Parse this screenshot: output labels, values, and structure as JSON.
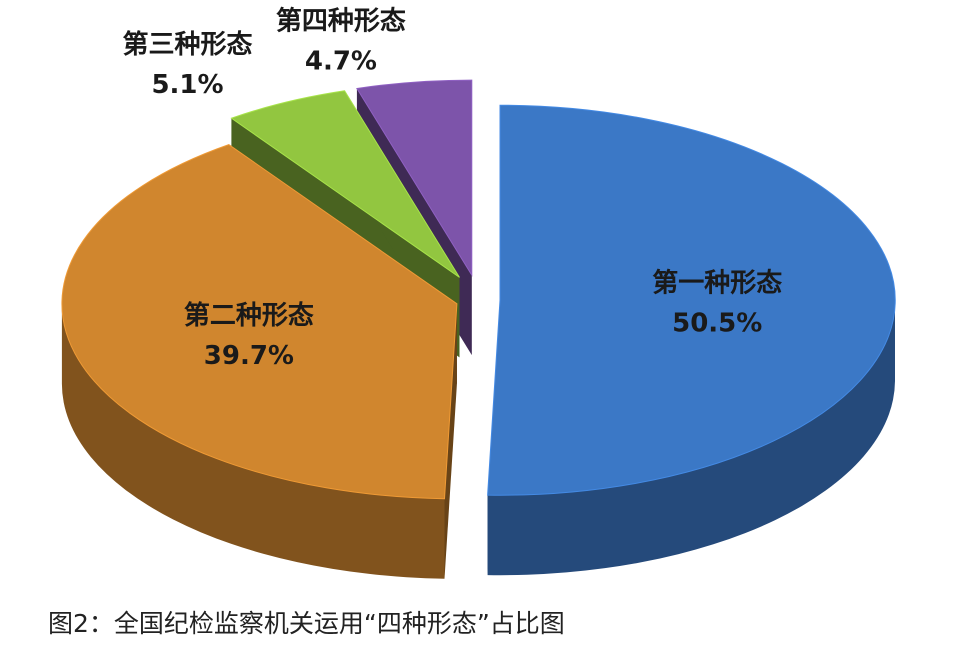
{
  "chart_data": {
    "type": "pie",
    "categories": [
      "第一种形态",
      "第二种形态",
      "第三种形态",
      "第四种形态"
    ],
    "values": [
      50.5,
      39.7,
      5.1,
      4.7
    ],
    "value_labels": [
      "50.5%",
      "39.7%",
      "5.1%",
      "4.7%"
    ],
    "colors": [
      "#3b78c6",
      "#d0862e",
      "#92c640",
      "#7d54aa"
    ],
    "caption": "图2：全国纪检监察机关运用“四种形态”占比图"
  }
}
